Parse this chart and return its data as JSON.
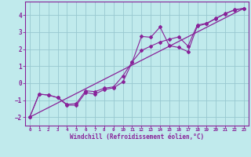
{
  "xlabel": "Windchill (Refroidissement éolien,°C)",
  "bg_color": "#c0eaec",
  "grid_color": "#98c8d0",
  "line_color": "#882299",
  "spine_color": "#882299",
  "xlim": [
    -0.5,
    23.5
  ],
  "ylim": [
    -2.5,
    4.8
  ],
  "xticks": [
    0,
    1,
    2,
    3,
    4,
    5,
    6,
    7,
    8,
    9,
    10,
    11,
    12,
    13,
    14,
    15,
    16,
    17,
    18,
    19,
    20,
    21,
    22,
    23
  ],
  "yticks": [
    -2,
    -1,
    0,
    1,
    2,
    3,
    4
  ],
  "trend_x": [
    0,
    23
  ],
  "trend_y": [
    -2.0,
    4.4
  ],
  "scatter_x": [
    0,
    1,
    2,
    3,
    4,
    5,
    6,
    7,
    8,
    9,
    10,
    11,
    12,
    13,
    14,
    15,
    16,
    17,
    18,
    19,
    20,
    21,
    22,
    23
  ],
  "scatter_y": [
    -2.0,
    -0.65,
    -0.7,
    -0.85,
    -1.3,
    -1.3,
    -0.55,
    -0.65,
    -0.38,
    -0.28,
    0.07,
    1.22,
    2.75,
    2.7,
    3.3,
    2.2,
    2.1,
    1.85,
    3.35,
    3.5,
    3.8,
    4.1,
    4.3,
    4.4
  ],
  "line2_x": [
    0,
    1,
    2,
    3,
    4,
    5,
    6,
    7,
    8,
    9,
    10,
    11,
    12,
    13,
    14,
    15,
    16,
    17,
    18,
    19,
    20,
    21,
    22,
    23
  ],
  "line2_y": [
    -2.0,
    -0.65,
    -0.7,
    -0.85,
    -1.25,
    -1.2,
    -0.45,
    -0.5,
    -0.3,
    -0.22,
    0.42,
    1.25,
    1.92,
    2.18,
    2.42,
    2.58,
    2.72,
    2.18,
    3.42,
    3.52,
    3.82,
    4.08,
    4.32,
    4.4
  ]
}
